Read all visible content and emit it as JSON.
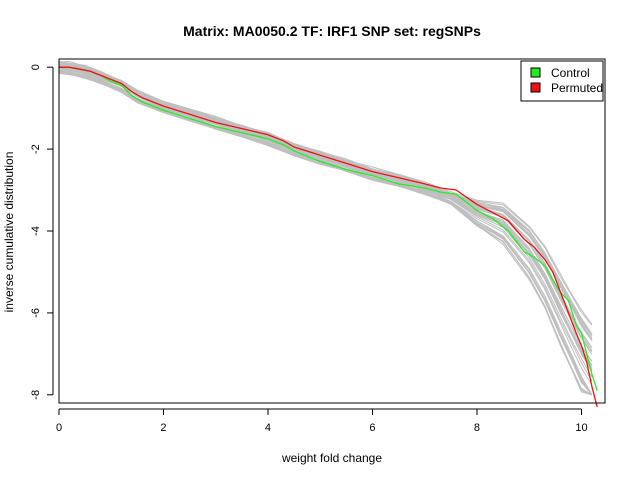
{
  "chart_data": {
    "type": "line",
    "title": "Matrix: MA0050.2 TF: IRF1 SNP set: regSNPs",
    "xlabel": "weight fold change",
    "ylabel": "inverse cumulative distribution",
    "xlim": [
      0,
      10.45
    ],
    "ylim": [
      -8.2,
      0.2
    ],
    "xticks": [
      0,
      2,
      4,
      6,
      8,
      10
    ],
    "yticks": [
      0,
      -2,
      -4,
      -6,
      -8
    ],
    "grid": false,
    "legend_position": "top-right",
    "legend": [
      {
        "label": "Control",
        "color": "#22ee22"
      },
      {
        "label": "Permuted",
        "color": "#ee1111"
      }
    ],
    "background_series": {
      "description_color": "#bfbfbf",
      "count": 40,
      "x": [
        0,
        0.2,
        0.5,
        0.8,
        1.2,
        1.5,
        2.0,
        2.5,
        3.0,
        3.5,
        4.0,
        4.5,
        5.0,
        5.5,
        6.0,
        6.5,
        7.0,
        7.5,
        8.0,
        8.5,
        9.0,
        9.3,
        9.6,
        9.8,
        10.0,
        10.2
      ],
      "center": [
        0,
        -0.02,
        -0.1,
        -0.25,
        -0.45,
        -0.7,
        -0.95,
        -1.15,
        -1.35,
        -1.55,
        -1.75,
        -2.0,
        -2.2,
        -2.4,
        -2.6,
        -2.75,
        -2.95,
        -3.2,
        -3.55,
        -3.8,
        -4.5,
        -5.1,
        -5.9,
        -6.4,
        -6.9,
        -7.3
      ]
    },
    "series": [
      {
        "name": "Control",
        "color": "#22ee22",
        "x": [
          0,
          0.2,
          0.4,
          0.6,
          0.8,
          1.0,
          1.2,
          1.4,
          1.6,
          2.0,
          2.5,
          3.0,
          3.5,
          4.0,
          4.3,
          4.5,
          5.0,
          5.5,
          6.0,
          6.5,
          7.0,
          7.3,
          7.6,
          8.0,
          8.3,
          8.6,
          8.9,
          9.1,
          9.3,
          9.45,
          9.6,
          9.75,
          9.9,
          10.0,
          10.1,
          10.2,
          10.3
        ],
        "values": [
          0,
          0,
          -0.05,
          -0.1,
          -0.2,
          -0.35,
          -0.45,
          -0.7,
          -0.85,
          -1.05,
          -1.25,
          -1.45,
          -1.6,
          -1.75,
          -1.9,
          -2.05,
          -2.3,
          -2.5,
          -2.65,
          -2.85,
          -2.95,
          -3.05,
          -3.1,
          -3.5,
          -3.7,
          -4.0,
          -4.5,
          -4.65,
          -4.85,
          -5.2,
          -5.5,
          -5.7,
          -6.3,
          -6.5,
          -7.0,
          -7.5,
          -7.9
        ]
      },
      {
        "name": "Permuted",
        "color": "#ee1111",
        "x": [
          0,
          0.2,
          0.4,
          0.6,
          0.8,
          1.0,
          1.2,
          1.4,
          1.6,
          2.0,
          2.5,
          3.0,
          3.5,
          4.0,
          4.3,
          4.5,
          5.0,
          5.5,
          6.0,
          6.5,
          7.0,
          7.3,
          7.6,
          8.0,
          8.3,
          8.6,
          8.9,
          9.1,
          9.3,
          9.45,
          9.6,
          9.75,
          9.9,
          10.0,
          10.1,
          10.2,
          10.3
        ],
        "values": [
          0,
          0,
          -0.05,
          -0.1,
          -0.2,
          -0.3,
          -0.4,
          -0.6,
          -0.75,
          -0.95,
          -1.15,
          -1.35,
          -1.5,
          -1.65,
          -1.8,
          -1.95,
          -2.15,
          -2.35,
          -2.55,
          -2.7,
          -2.85,
          -2.95,
          -3.0,
          -3.35,
          -3.55,
          -3.75,
          -4.2,
          -4.4,
          -4.7,
          -5.0,
          -5.5,
          -6.0,
          -6.5,
          -6.8,
          -7.2,
          -7.8,
          -8.3
        ]
      }
    ]
  }
}
